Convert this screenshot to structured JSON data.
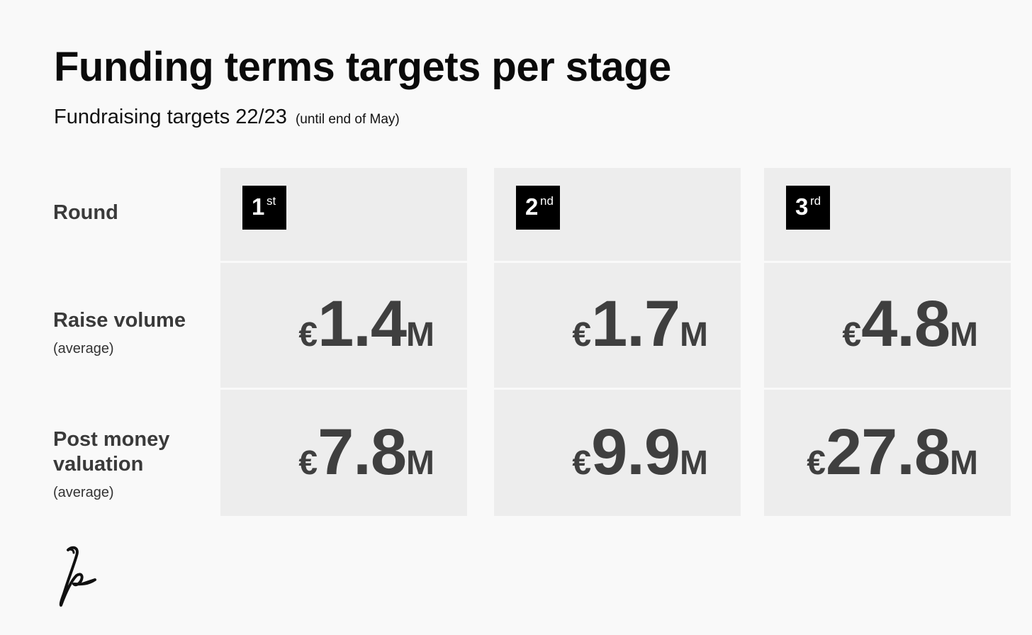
{
  "header": {
    "title": "Funding terms targets per stage",
    "subtitle": "Fundraising targets 22/23",
    "subtitle_note": "(until end of May)"
  },
  "rows": {
    "round": {
      "label": "Round"
    },
    "raise": {
      "label": "Raise volume",
      "sub": "(average)"
    },
    "post": {
      "label_line1": "Post money",
      "label_line2": "valuation",
      "sub": "(average)"
    }
  },
  "columns": [
    {
      "round_num": "1",
      "round_suffix": "st",
      "raise": {
        "currency": "€",
        "value": "1.4",
        "unit": "M"
      },
      "post": {
        "currency": "€",
        "value": "7.8",
        "unit": "M"
      }
    },
    {
      "round_num": "2",
      "round_suffix": "nd",
      "raise": {
        "currency": "€",
        "value": "1.7",
        "unit": "M"
      },
      "post": {
        "currency": "€",
        "value": "9.9",
        "unit": "M"
      }
    },
    {
      "round_num": "3",
      "round_suffix": "rd",
      "raise": {
        "currency": "€",
        "value": "4.8",
        "unit": "M"
      },
      "post": {
        "currency": "€",
        "value": "27.8",
        "unit": "M"
      }
    }
  ],
  "logo": {
    "icon": "signature-logo-icon"
  },
  "colors": {
    "background": "#f9f9f9",
    "cell": "#ededed",
    "badge": "#000000",
    "value_text": "#3f3f3f"
  }
}
